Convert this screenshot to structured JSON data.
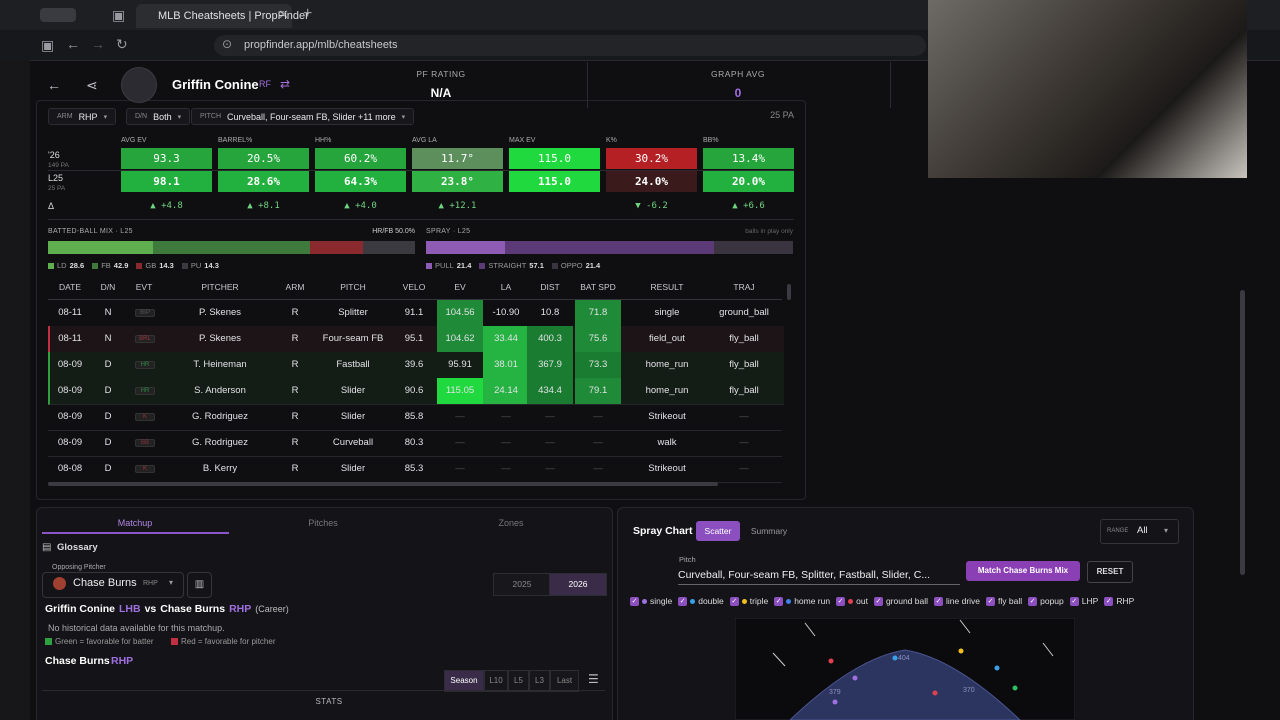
{
  "browser": {
    "tab_title": "MLB Cheatsheets | PropFinder",
    "url": "propfinder.app/mlb/cheatsheets"
  },
  "header": {
    "player": "Griffin Conine",
    "position": "RF",
    "metrics": [
      {
        "label": "PF RATING",
        "value": "N/A"
      },
      {
        "label": "GRAPH AVG",
        "value": "0"
      }
    ]
  },
  "filters": {
    "items": [
      {
        "label": "ARM",
        "value": "RHP"
      },
      {
        "label": "D/N",
        "value": "Both"
      },
      {
        "label": "PITCH",
        "value": "Curveball, Four-seam FB, Slider +11 more"
      }
    ],
    "sample": "25 PA"
  },
  "stats": {
    "rows": [
      {
        "label": "'26",
        "sub": "149 PA"
      },
      {
        "label": "L25",
        "sub": "25 PA"
      },
      {
        "label": "Δ"
      }
    ],
    "columns": [
      {
        "name": "AVG EV",
        "season": "93.3",
        "l25": "98.1",
        "delta": "▲ +4.8",
        "season_color": "#25a53c",
        "l25_color": "#22b13f"
      },
      {
        "name": "BARREL%",
        "season": "20.5%",
        "l25": "28.6%",
        "delta": "▲ +8.1",
        "season_color": "#25a53c",
        "l25_color": "#22b13f"
      },
      {
        "name": "HH%",
        "season": "60.2%",
        "l25": "64.3%",
        "delta": "▲ +4.0",
        "season_color": "#25a53c",
        "l25_color": "#22b13f"
      },
      {
        "name": "AVG LA",
        "season": "11.7°",
        "l25": "23.8°",
        "delta": "▲ +12.1",
        "season_color": "#5c8f5c",
        "l25_color": "#30b143"
      },
      {
        "name": "MAX EV",
        "season": "115.0",
        "l25": "115.0",
        "season_color": "#1fd93e",
        "l25_color": "#1fd93e"
      },
      {
        "name": "K%",
        "season": "30.2%",
        "l25": "24.0%",
        "delta": "▼ -6.2",
        "season_color": "#b52025",
        "l25_color": "#3b1a1c"
      },
      {
        "name": "BB%",
        "season": "13.4%",
        "l25": "20.0%",
        "delta": "▲ +6.6",
        "season_color": "#25a53c",
        "l25_color": "#22b13f"
      }
    ]
  },
  "mix": {
    "title": "BATTED-BALL MIX · L25",
    "hr_fb": "HR/FB 50.0%",
    "segments": [
      {
        "name": "LD",
        "value": 28.6,
        "color": "#5fae4f"
      },
      {
        "name": "FB",
        "value": 42.9,
        "color": "#3d7a3b"
      },
      {
        "name": "GB",
        "value": 14.3,
        "color": "#8a2a2e"
      },
      {
        "name": "PU",
        "value": 14.3,
        "color": "#3a3a40"
      }
    ]
  },
  "spray": {
    "title": "SPRAY · L25",
    "note": "balls in play only",
    "segments": [
      {
        "name": "PULL",
        "value": 21.4,
        "color": "#8e5bb5"
      },
      {
        "name": "STRAIGHT",
        "value": 57.1,
        "color": "#5c3a78"
      },
      {
        "name": "OPPO",
        "value": 21.4,
        "color": "#3a3440"
      }
    ]
  },
  "table": {
    "headers": [
      "DATE",
      "D/N",
      "EVT",
      "PITCHER",
      "ARM",
      "PITCH",
      "VELO",
      "EV",
      "LA",
      "DIST",
      "BAT SPD",
      "RESULT",
      "TRAJ"
    ],
    "rows": [
      [
        "08-11",
        "N",
        "BIP",
        "P. Skenes",
        "R",
        "Splitter",
        "91.1",
        "104.56",
        "-10.90",
        "10.8",
        "71.8",
        "single",
        "ground_ball"
      ],
      [
        "08-11",
        "N",
        "BRL",
        "P. Skenes",
        "R",
        "Four-seam FB",
        "95.1",
        "104.62",
        "33.44",
        "400.3",
        "75.6",
        "field_out",
        "fly_ball"
      ],
      [
        "08-09",
        "D",
        "HR",
        "T. Heineman",
        "R",
        "Fastball",
        "39.6",
        "95.91",
        "38.01",
        "367.9",
        "73.3",
        "home_run",
        "fly_ball"
      ],
      [
        "08-09",
        "D",
        "HR",
        "S. Anderson",
        "R",
        "Slider",
        "90.6",
        "115.05",
        "24.14",
        "434.4",
        "79.1",
        "home_run",
        "fly_ball"
      ],
      [
        "08-09",
        "D",
        "K",
        "G. Rodriguez",
        "R",
        "Slider",
        "85.8",
        "—",
        "—",
        "—",
        "—",
        "Strikeout",
        "—"
      ],
      [
        "08-09",
        "D",
        "BB",
        "G. Rodriguez",
        "R",
        "Curveball",
        "80.3",
        "—",
        "—",
        "—",
        "—",
        "walk",
        "—"
      ],
      [
        "08-08",
        "D",
        "K",
        "B. Kerry",
        "R",
        "Slider",
        "85.3",
        "—",
        "—",
        "—",
        "—",
        "Strikeout",
        "—"
      ]
    ]
  },
  "matchup": {
    "tabs": [
      "Matchup",
      "Pitches",
      "Zones"
    ],
    "glossary": "Glossary",
    "opposing_label": "Opposing Pitcher",
    "pitcher": "Chase Burns",
    "pitcher_hand": "RHP",
    "years": [
      "2025",
      "2026"
    ],
    "heading": {
      "batter": "Griffin Conine",
      "batter_hand": "LHB",
      "vs": "vs",
      "pitcher": "Chase Burns",
      "pitcher_hand": "RHP",
      "scope": "(Career)"
    },
    "no_data": "No historical data available for this matchup.",
    "legend": [
      "Green = favorable for batter",
      "Red = favorable for pitcher"
    ],
    "pitcher_title": "Chase Burns",
    "pitcher_title_hand": "RHP",
    "splits": [
      "Season",
      "L10",
      "L5",
      "L3",
      "Last"
    ],
    "stats_header": "STATS"
  },
  "spray_chart": {
    "title": "Spray Chart",
    "views": [
      "Scatter",
      "Summary"
    ],
    "range_label": "RANGE",
    "range": "All",
    "pitch_label": "Pitch",
    "pitch": "Curveball, Four-seam FB, Splitter, Fastball, Slider, C...",
    "match_button": "Match Chase Burns Mix",
    "reset_button": "RESET",
    "filters": [
      {
        "label": "single",
        "color": "#a070e0"
      },
      {
        "label": "double",
        "color": "#3aa0e8"
      },
      {
        "label": "triple",
        "color": "#f0c020"
      },
      {
        "label": "home run",
        "color": "#4080f0"
      },
      {
        "label": "out",
        "color": "#e04050"
      },
      {
        "label": "ground ball"
      },
      {
        "label": "line drive"
      },
      {
        "label": "fly ball"
      },
      {
        "label": "popup"
      },
      {
        "label": "LHP"
      },
      {
        "label": "RHP"
      }
    ],
    "distances": [
      "404",
      "379",
      "370"
    ]
  }
}
